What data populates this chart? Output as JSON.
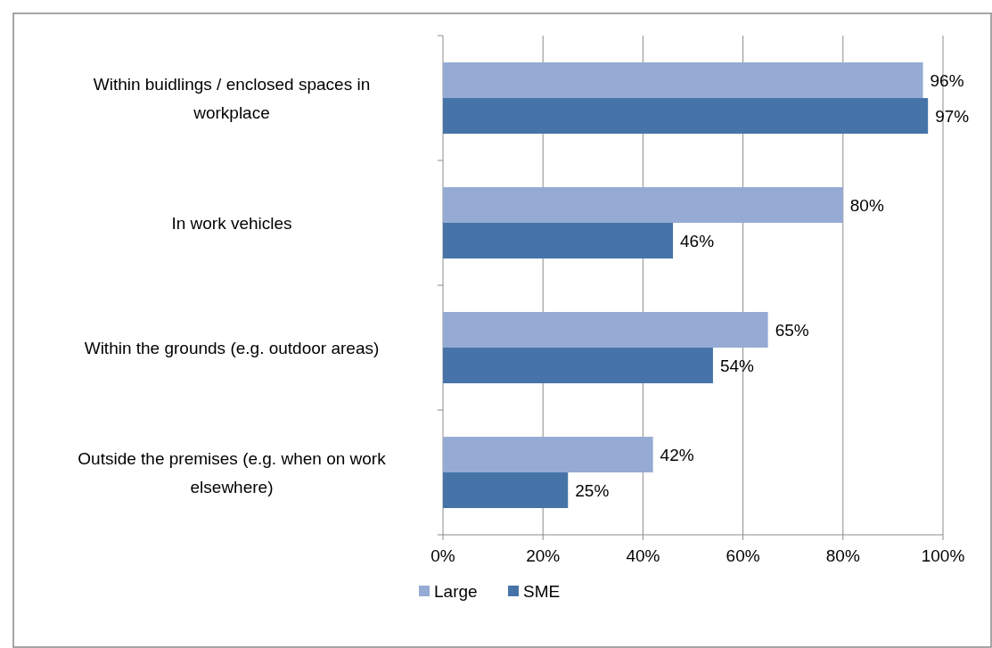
{
  "chart_data": {
    "type": "bar",
    "orientation": "horizontal",
    "categories": [
      "Within buidlings / enclosed spaces in workplace",
      "In work vehicles",
      "Within the grounds (e.g. outdoor areas)",
      "Outside the premises (e.g. when on work elsewhere)"
    ],
    "series": [
      {
        "name": "Large",
        "color": "#95abd3",
        "values": [
          96,
          80,
          65,
          42
        ]
      },
      {
        "name": "SME",
        "color": "#4674a8",
        "values": [
          97,
          46,
          54,
          25
        ]
      }
    ],
    "xlim": [
      0,
      100
    ],
    "xticks": [
      {
        "value": 0,
        "label": "0%"
      },
      {
        "value": 20,
        "label": "20%"
      },
      {
        "value": 40,
        "label": "40%"
      },
      {
        "value": 60,
        "label": "60%"
      },
      {
        "value": 80,
        "label": "80%"
      },
      {
        "value": 100,
        "label": "100%"
      }
    ],
    "value_labels": [
      [
        "96%",
        "80%",
        "65%",
        "42%"
      ],
      [
        "97%",
        "46%",
        "54%",
        "25%"
      ]
    ],
    "grid": "x",
    "legend": "bottom"
  }
}
